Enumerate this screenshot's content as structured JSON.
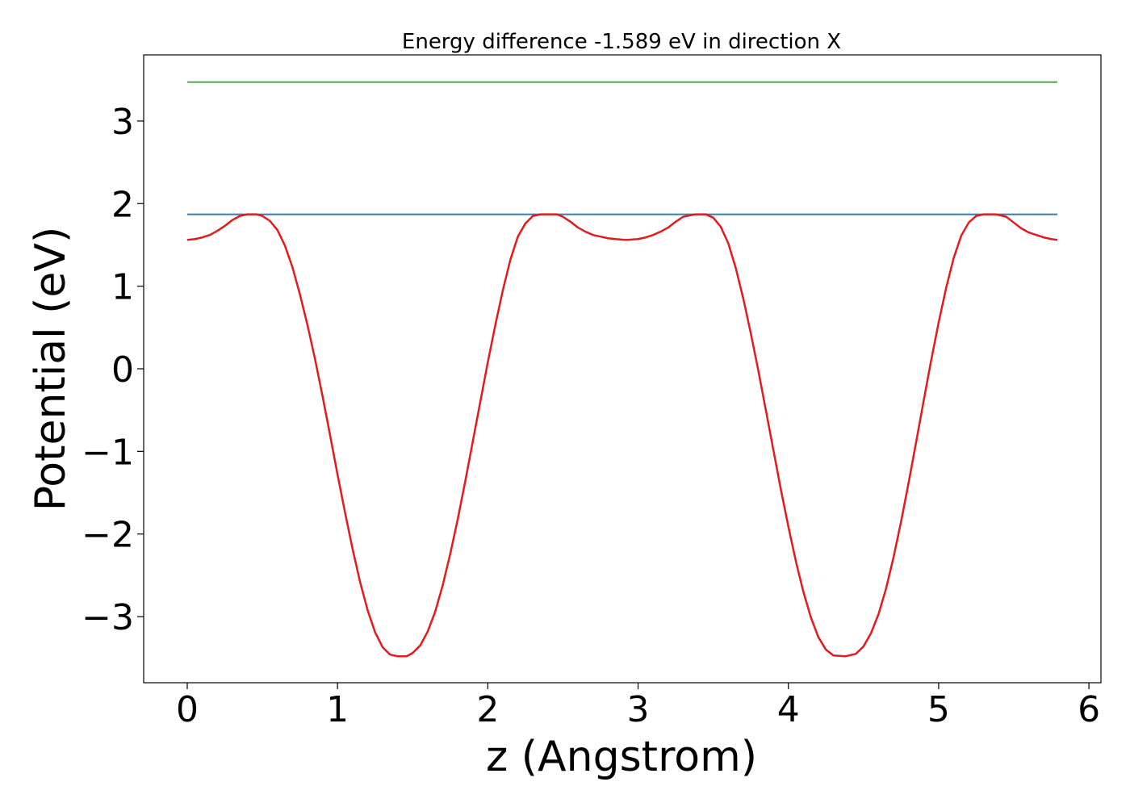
{
  "chart_data": {
    "type": "line",
    "title": "Energy difference -1.589 eV in direction X",
    "xlabel": "z (Angstrom)",
    "ylabel": "Potential (eV)",
    "xlim": [
      -0.29,
      6.08
    ],
    "ylim": [
      -3.8,
      3.8
    ],
    "x_ticks": [
      0,
      1,
      2,
      3,
      4,
      5,
      6
    ],
    "y_ticks": [
      -3,
      -2,
      -1,
      0,
      1,
      2,
      3
    ],
    "x_tick_labels": [
      "0",
      "1",
      "2",
      "3",
      "4",
      "5",
      "6"
    ],
    "y_tick_labels": [
      "−3",
      "−2",
      "−1",
      "0",
      "1",
      "2",
      "3"
    ],
    "grid": false,
    "series": [
      {
        "kind": "hline",
        "y": 3.47,
        "x_range": [
          0,
          5.79
        ],
        "color": "#4daf4a"
      },
      {
        "kind": "hline",
        "y": 1.87,
        "x_range": [
          0,
          5.79
        ],
        "color": "#377eb8"
      },
      {
        "kind": "line",
        "color": "#e41a1c",
        "x": [
          0.0,
          0.05,
          0.1,
          0.15,
          0.2,
          0.25,
          0.3,
          0.35,
          0.4,
          0.46,
          0.5,
          0.55,
          0.6,
          0.65,
          0.7,
          0.75,
          0.8,
          0.85,
          0.9,
          0.95,
          1.0,
          1.05,
          1.1,
          1.15,
          1.2,
          1.25,
          1.3,
          1.35,
          1.4,
          1.46,
          1.5,
          1.55,
          1.6,
          1.65,
          1.7,
          1.75,
          1.8,
          1.85,
          1.9,
          1.95,
          2.0,
          2.05,
          2.1,
          2.15,
          2.2,
          2.25,
          2.3,
          2.35,
          2.4,
          2.46,
          2.5,
          2.55,
          2.6,
          2.65,
          2.7,
          2.75,
          2.8,
          2.85,
          2.92,
          3.0,
          3.05,
          3.1,
          3.15,
          3.2,
          3.25,
          3.3,
          3.38,
          3.45,
          3.5,
          3.55,
          3.6,
          3.65,
          3.7,
          3.75,
          3.8,
          3.85,
          3.9,
          3.95,
          4.0,
          4.05,
          4.1,
          4.15,
          4.2,
          4.25,
          4.3,
          4.38,
          4.45,
          4.5,
          4.55,
          4.6,
          4.65,
          4.7,
          4.75,
          4.8,
          4.85,
          4.9,
          4.95,
          5.0,
          5.05,
          5.1,
          5.15,
          5.2,
          5.25,
          5.3,
          5.38,
          5.45,
          5.5,
          5.55,
          5.6,
          5.65,
          5.7,
          5.75,
          5.79
        ],
        "y": [
          1.56,
          1.57,
          1.59,
          1.62,
          1.67,
          1.73,
          1.8,
          1.85,
          1.87,
          1.87,
          1.85,
          1.79,
          1.68,
          1.49,
          1.23,
          0.9,
          0.53,
          0.12,
          -0.33,
          -0.8,
          -1.28,
          -1.74,
          -2.18,
          -2.58,
          -2.92,
          -3.19,
          -3.37,
          -3.46,
          -3.48,
          -3.48,
          -3.44,
          -3.35,
          -3.18,
          -2.94,
          -2.62,
          -2.24,
          -1.82,
          -1.36,
          -0.88,
          -0.4,
          0.08,
          0.53,
          0.95,
          1.32,
          1.6,
          1.76,
          1.85,
          1.87,
          1.87,
          1.87,
          1.84,
          1.78,
          1.71,
          1.66,
          1.62,
          1.6,
          1.58,
          1.57,
          1.56,
          1.57,
          1.59,
          1.62,
          1.66,
          1.71,
          1.78,
          1.84,
          1.87,
          1.87,
          1.83,
          1.72,
          1.52,
          1.22,
          0.85,
          0.43,
          -0.02,
          -0.5,
          -0.98,
          -1.46,
          -1.91,
          -2.33,
          -2.7,
          -3.01,
          -3.25,
          -3.4,
          -3.47,
          -3.48,
          -3.45,
          -3.36,
          -3.2,
          -2.97,
          -2.66,
          -2.28,
          -1.85,
          -1.38,
          -0.89,
          -0.39,
          0.1,
          0.56,
          0.98,
          1.34,
          1.61,
          1.77,
          1.85,
          1.87,
          1.87,
          1.84,
          1.77,
          1.7,
          1.65,
          1.62,
          1.59,
          1.57,
          1.56
        ]
      }
    ]
  }
}
